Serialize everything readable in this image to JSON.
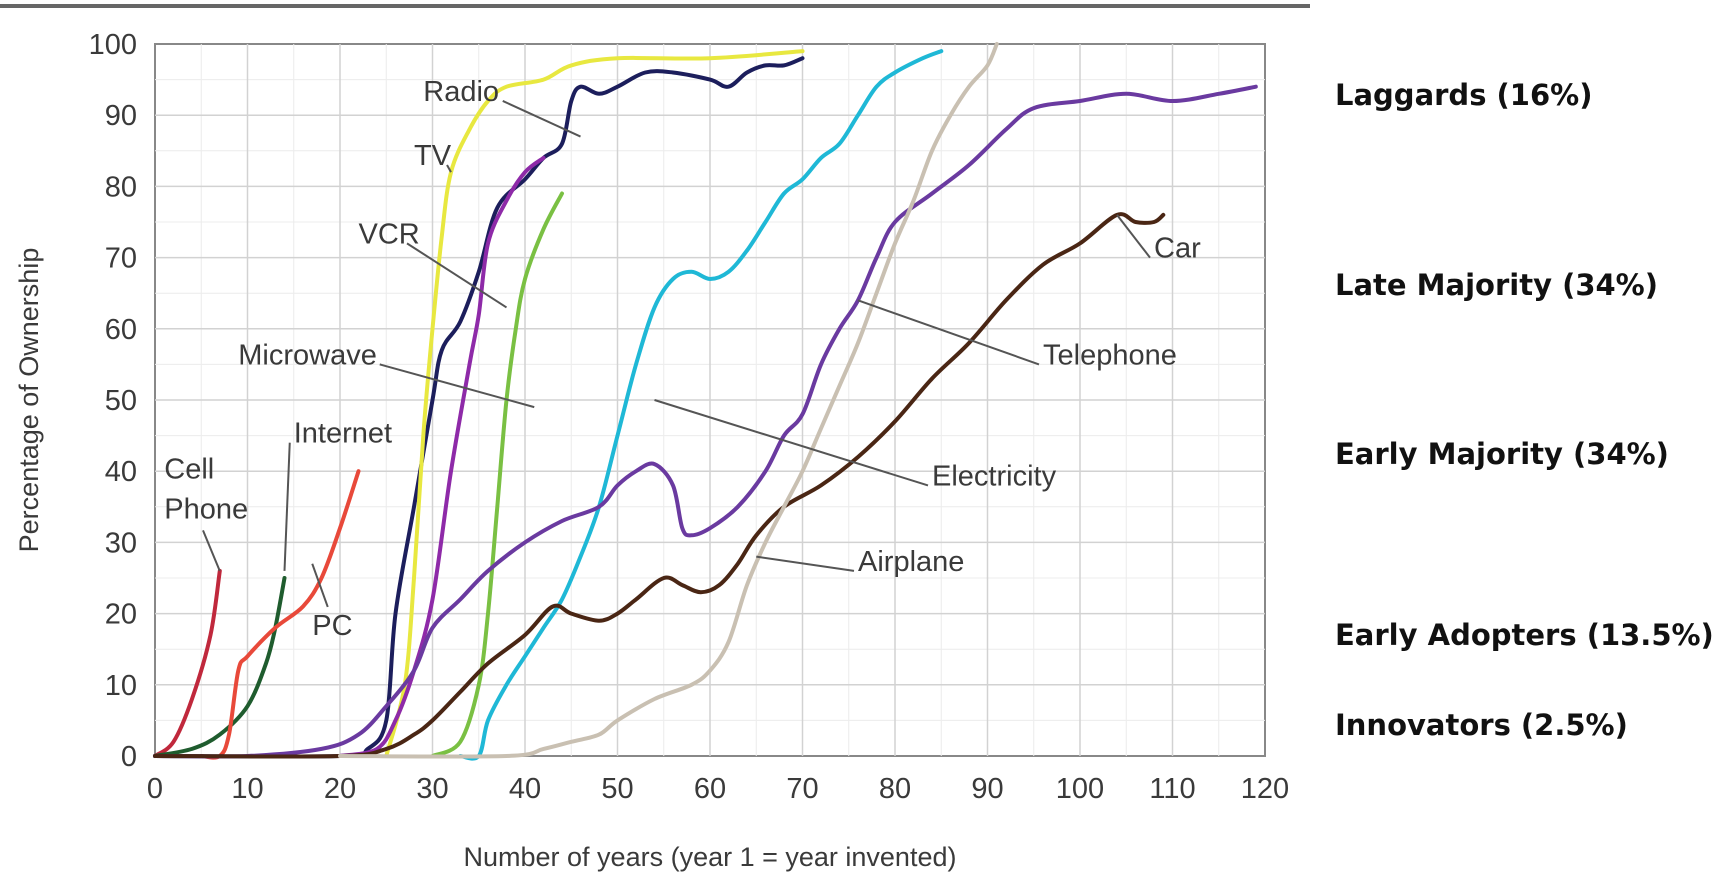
{
  "chart_data": {
    "type": "line",
    "title": "",
    "xlabel": "Number of years (year 1 = year invented)",
    "ylabel": "Percentage of Ownership",
    "xlim": [
      0,
      120
    ],
    "ylim": [
      0,
      100
    ],
    "xticks": [
      "0",
      "10",
      "20",
      "30",
      "40",
      "50",
      "60",
      "70",
      "80",
      "90",
      "100",
      "110",
      "120"
    ],
    "yticks": [
      "0",
      "10",
      "20",
      "30",
      "40",
      "50",
      "60",
      "70",
      "80",
      "90",
      "100"
    ],
    "grid": true,
    "legend": "none",
    "series": [
      {
        "name": "Cell Phone",
        "color": "#c0283c",
        "points": [
          [
            0,
            0
          ],
          [
            2,
            2
          ],
          [
            4,
            8
          ],
          [
            6,
            17
          ],
          [
            7,
            26
          ]
        ]
      },
      {
        "name": "Internet",
        "color": "#1f5c2e",
        "points": [
          [
            0,
            0
          ],
          [
            4,
            1
          ],
          [
            7,
            3
          ],
          [
            10,
            7
          ],
          [
            12,
            13
          ],
          [
            13,
            18
          ],
          [
            14,
            25
          ]
        ]
      },
      {
        "name": "PC",
        "color": "#e8493a",
        "points": [
          [
            5,
            0
          ],
          [
            7,
            0
          ],
          [
            8,
            3
          ],
          [
            9,
            12
          ],
          [
            10,
            14
          ],
          [
            13,
            18
          ],
          [
            16,
            21
          ],
          [
            18,
            25
          ],
          [
            20,
            32
          ],
          [
            22,
            40
          ]
        ]
      },
      {
        "name": "Radio",
        "color": "#1c1e5c",
        "points": [
          [
            0,
            0
          ],
          [
            20,
            0
          ],
          [
            23,
            1
          ],
          [
            25,
            5
          ],
          [
            26,
            20
          ],
          [
            28,
            35
          ],
          [
            30,
            50
          ],
          [
            31,
            57
          ],
          [
            33,
            61
          ],
          [
            35,
            68
          ],
          [
            37,
            77
          ],
          [
            40,
            81
          ],
          [
            42,
            84
          ],
          [
            44,
            86
          ],
          [
            45,
            92
          ],
          [
            46,
            94
          ],
          [
            48,
            93
          ],
          [
            50,
            94
          ],
          [
            53,
            96
          ],
          [
            56,
            96
          ],
          [
            60,
            95
          ],
          [
            62,
            94
          ],
          [
            64,
            96
          ],
          [
            66,
            97
          ],
          [
            68,
            97
          ],
          [
            70,
            98
          ]
        ]
      },
      {
        "name": "TV",
        "color": "#e8e840",
        "points": [
          [
            25,
            0
          ],
          [
            27,
            10
          ],
          [
            28,
            25
          ],
          [
            29,
            45
          ],
          [
            30,
            60
          ],
          [
            31,
            73
          ],
          [
            32,
            82
          ],
          [
            34,
            88
          ],
          [
            36,
            92
          ],
          [
            38,
            94
          ],
          [
            42,
            95
          ],
          [
            45,
            97
          ],
          [
            50,
            98
          ],
          [
            60,
            98
          ],
          [
            70,
            99
          ]
        ]
      },
      {
        "name": "VCR",
        "color": "#7ac043",
        "points": [
          [
            30,
            0
          ],
          [
            33,
            2
          ],
          [
            35,
            10
          ],
          [
            36,
            20
          ],
          [
            37,
            35
          ],
          [
            38,
            50
          ],
          [
            39,
            60
          ],
          [
            40,
            67
          ],
          [
            42,
            74
          ],
          [
            44,
            79
          ]
        ]
      },
      {
        "name": "Microwave",
        "color": "#8e2aa8",
        "points": [
          [
            20,
            0
          ],
          [
            24,
            1
          ],
          [
            26,
            5
          ],
          [
            28,
            12
          ],
          [
            30,
            22
          ],
          [
            32,
            40
          ],
          [
            34,
            55
          ],
          [
            35,
            62
          ],
          [
            36,
            72
          ],
          [
            38,
            78
          ],
          [
            40,
            82
          ],
          [
            42,
            84
          ]
        ]
      },
      {
        "name": "Electricity",
        "color": "#1fb8d6",
        "points": [
          [
            33,
            0
          ],
          [
            35,
            0
          ],
          [
            36,
            5
          ],
          [
            38,
            10
          ],
          [
            40,
            14
          ],
          [
            42,
            18
          ],
          [
            44,
            22
          ],
          [
            46,
            28
          ],
          [
            48,
            35
          ],
          [
            50,
            45
          ],
          [
            52,
            55
          ],
          [
            54,
            63
          ],
          [
            56,
            67
          ],
          [
            58,
            68
          ],
          [
            60,
            67
          ],
          [
            62,
            68
          ],
          [
            64,
            71
          ],
          [
            66,
            75
          ],
          [
            68,
            79
          ],
          [
            70,
            81
          ],
          [
            72,
            84
          ],
          [
            74,
            86
          ],
          [
            76,
            90
          ],
          [
            78,
            94
          ],
          [
            80,
            96
          ],
          [
            83,
            98
          ],
          [
            85,
            99
          ]
        ]
      },
      {
        "name": "Telephone",
        "color": "#6a3aa0",
        "points": [
          [
            0,
            0
          ],
          [
            10,
            0
          ],
          [
            18,
            1
          ],
          [
            22,
            3
          ],
          [
            25,
            7
          ],
          [
            28,
            12
          ],
          [
            30,
            18
          ],
          [
            33,
            22
          ],
          [
            36,
            26
          ],
          [
            40,
            30
          ],
          [
            44,
            33
          ],
          [
            48,
            35
          ],
          [
            50,
            38
          ],
          [
            52,
            40
          ],
          [
            54,
            41
          ],
          [
            56,
            38
          ],
          [
            57,
            32
          ],
          [
            58,
            31
          ],
          [
            60,
            32
          ],
          [
            63,
            35
          ],
          [
            66,
            40
          ],
          [
            68,
            45
          ],
          [
            70,
            48
          ],
          [
            72,
            55
          ],
          [
            74,
            60
          ],
          [
            76,
            64
          ],
          [
            78,
            70
          ],
          [
            80,
            75
          ],
          [
            84,
            79
          ],
          [
            88,
            83
          ],
          [
            92,
            88
          ],
          [
            95,
            91
          ],
          [
            100,
            92
          ],
          [
            105,
            93
          ],
          [
            110,
            92
          ],
          [
            115,
            93
          ],
          [
            119,
            94
          ]
        ]
      },
      {
        "name": "Car",
        "color": "#4a2614",
        "points": [
          [
            0,
            0
          ],
          [
            20,
            0
          ],
          [
            25,
            1
          ],
          [
            28,
            3
          ],
          [
            30,
            5
          ],
          [
            33,
            9
          ],
          [
            36,
            13
          ],
          [
            40,
            17
          ],
          [
            43,
            21
          ],
          [
            45,
            20
          ],
          [
            48,
            19
          ],
          [
            50,
            20
          ],
          [
            52,
            22
          ],
          [
            55,
            25
          ],
          [
            57,
            24
          ],
          [
            59,
            23
          ],
          [
            61,
            24
          ],
          [
            63,
            27
          ],
          [
            65,
            31
          ],
          [
            68,
            35
          ],
          [
            72,
            38
          ],
          [
            76,
            42
          ],
          [
            80,
            47
          ],
          [
            84,
            53
          ],
          [
            88,
            58
          ],
          [
            92,
            64
          ],
          [
            96,
            69
          ],
          [
            100,
            72
          ],
          [
            104,
            76
          ],
          [
            106,
            75
          ],
          [
            108,
            75
          ],
          [
            109,
            76
          ]
        ]
      },
      {
        "name": "Airplane",
        "color": "#c9c0b2",
        "points": [
          [
            20,
            0
          ],
          [
            38,
            0
          ],
          [
            42,
            1
          ],
          [
            45,
            2
          ],
          [
            48,
            3
          ],
          [
            50,
            5
          ],
          [
            54,
            8
          ],
          [
            58,
            10
          ],
          [
            60,
            12
          ],
          [
            62,
            16
          ],
          [
            64,
            24
          ],
          [
            66,
            30
          ],
          [
            68,
            35
          ],
          [
            70,
            40
          ],
          [
            72,
            46
          ],
          [
            74,
            52
          ],
          [
            76,
            58
          ],
          [
            78,
            65
          ],
          [
            80,
            72
          ],
          [
            82,
            78
          ],
          [
            84,
            85
          ],
          [
            86,
            90
          ],
          [
            88,
            94
          ],
          [
            90,
            97
          ],
          [
            91,
            100
          ]
        ]
      }
    ],
    "annotations": [
      {
        "lines": [
          "Radio"
        ],
        "anchor": [
          46,
          87
        ],
        "text_pos": [
          29,
          92
        ]
      },
      {
        "lines": [
          "TV"
        ],
        "anchor": [
          32,
          82
        ],
        "text_pos": [
          28,
          83
        ]
      },
      {
        "lines": [
          "VCR"
        ],
        "anchor": [
          38,
          63
        ],
        "text_pos": [
          22,
          72
        ]
      },
      {
        "lines": [
          "Microwave"
        ],
        "anchor": [
          41,
          49
        ],
        "text_pos": [
          9,
          55
        ]
      },
      {
        "lines": [
          "Internet"
        ],
        "anchor": [
          14,
          26
        ],
        "text_pos": [
          15,
          44
        ]
      },
      {
        "lines": [
          "Cell",
          "Phone"
        ],
        "anchor": [
          7,
          26
        ],
        "text_pos": [
          1,
          39
        ]
      },
      {
        "lines": [
          "PC"
        ],
        "anchor": [
          17,
          27
        ],
        "text_pos": [
          17,
          17
        ]
      },
      {
        "lines": [
          "Telephone"
        ],
        "anchor": [
          76,
          64
        ],
        "text_pos": [
          96,
          55
        ]
      },
      {
        "lines": [
          "Electricity"
        ],
        "anchor": [
          54,
          50
        ],
        "text_pos": [
          84,
          38
        ]
      },
      {
        "lines": [
          "Airplane"
        ],
        "anchor": [
          65,
          28
        ],
        "text_pos": [
          76,
          26
        ]
      },
      {
        "lines": [
          "Car"
        ],
        "anchor": [
          104,
          76
        ],
        "text_pos": [
          108,
          70
        ]
      }
    ]
  },
  "segments": [
    {
      "label": "Laggards (16%)"
    },
    {
      "label": "Late Majority (34%)"
    },
    {
      "label": "Early Majority (34%)"
    },
    {
      "label": "Early Adopters (13.5%)"
    },
    {
      "label": "Innovators (2.5%)"
    }
  ]
}
